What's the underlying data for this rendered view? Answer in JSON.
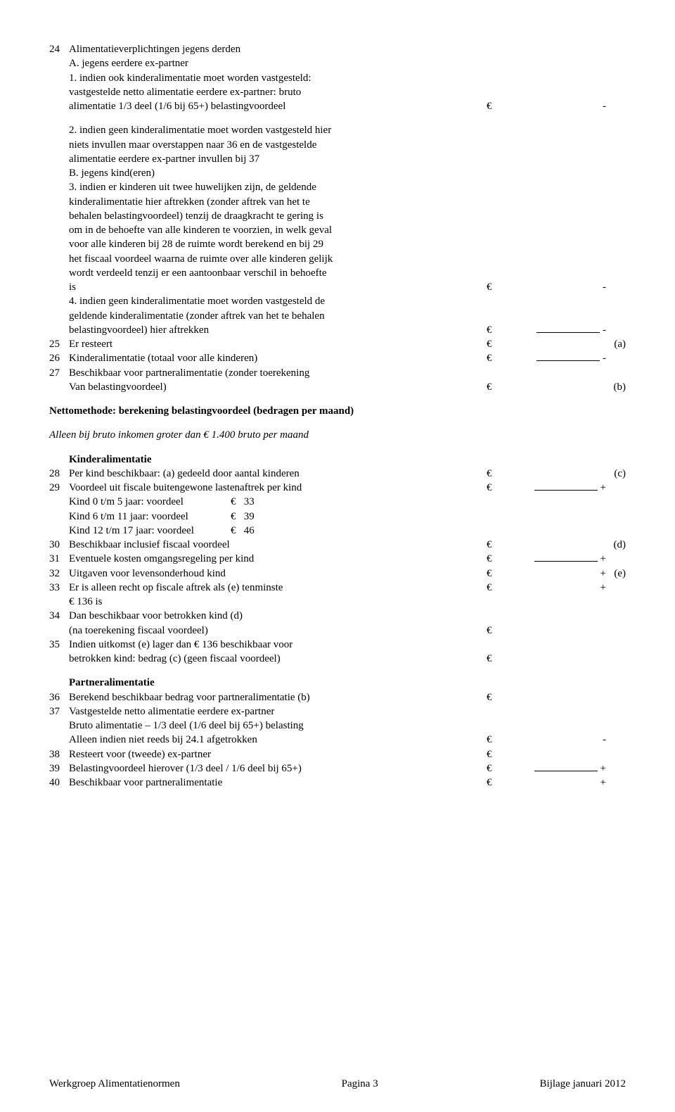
{
  "r24": {
    "num": "24",
    "title": "Alimentatieverplichtingen jegens derden"
  },
  "r24A": {
    "text": "A. jegens eerdere ex-partner"
  },
  "r24_1a": {
    "text": "1. indien ook kinderalimentatie moet worden vastgesteld:"
  },
  "r24_1b": {
    "text": "vastgestelde netto alimentatie eerdere ex-partner: bruto"
  },
  "r24_1c": {
    "text": "alimentatie 1/3 deel (1/6 bij 65+) belastingvoordeel",
    "eur": "€",
    "sign": "-"
  },
  "r24_2a": {
    "text": "2. indien geen kinderalimentatie moet worden vastgesteld hier"
  },
  "r24_2b": {
    "text": "niets invullen maar overstappen naar 36 en de vastgestelde"
  },
  "r24_2c": {
    "text": "alimentatie eerdere ex-partner invullen bij 37"
  },
  "r24B": {
    "text": "B. jegens kind(eren)"
  },
  "r24_3a": {
    "text": "3. indien er kinderen uit twee huwelijken zijn, de geldende"
  },
  "r24_3b": {
    "text": "kinderalimentatie hier aftrekken (zonder aftrek van het te"
  },
  "r24_3c": {
    "text": "behalen belastingvoordeel) tenzij de draagkracht te gering is"
  },
  "r24_3d": {
    "text": "om in de behoefte van alle kinderen te voorzien, in welk geval"
  },
  "r24_3e": {
    "text": "voor alle kinderen bij 28 de ruimte wordt berekend en bij 29"
  },
  "r24_3f": {
    "text": "het fiscaal voordeel waarna de ruimte over alle kinderen gelijk"
  },
  "r24_3g": {
    "text": "wordt verdeeld tenzij er een  aantoonbaar verschil in behoefte"
  },
  "r24_3h": {
    "text": "is",
    "eur": "€",
    "sign": "-"
  },
  "r24_4a": {
    "text": "4. indien geen kinderalimentatie moet worden vastgesteld de"
  },
  "r24_4b": {
    "text": "geldende kinderalimentatie (zonder aftrek van het te behalen"
  },
  "r24_4c": {
    "text": "belastingvoordeel) hier aftrekken",
    "eur": "€",
    "sign": "-",
    "blank": true
  },
  "r25": {
    "num": "25",
    "text": "Er resteert",
    "eur": "€",
    "label": "(a)"
  },
  "r26": {
    "num": "26",
    "text": "Kinderalimentatie (totaal voor alle kinderen)",
    "eur": "€",
    "sign": "-",
    "blank": true
  },
  "r27a": {
    "num": "27",
    "text": "Beschikbaar voor partneralimentatie (zonder toerekening"
  },
  "r27b": {
    "text": "Van belastingvoordeel)",
    "eur": "€",
    "label": "(b)"
  },
  "netto_title": "Nettomethode: berekening belastingvoordeel (bedragen per maand)",
  "alleen": "Alleen bij bruto inkomen groter dan € 1.400  bruto per maand",
  "kinder_title": "Kinderalimentatie",
  "r28": {
    "num": "28",
    "text": "Per kind beschikbaar: (a) gedeeld door aantal kinderen",
    "eur": "€",
    "label": "(c)"
  },
  "r29": {
    "num": "29",
    "text": "Voordeel uit fiscale buitengewone lastenaftrek per kind",
    "eur": "€",
    "sign": "+",
    "blank": true
  },
  "kind0": {
    "label": "Kind 0 t/m 5 jaar: voordeel",
    "eur": "€",
    "val": "33"
  },
  "kind6": {
    "label": "Kind 6 t/m 11 jaar: voordeel",
    "eur": "€",
    "val": "39"
  },
  "kind12": {
    "label": "Kind 12 t/m 17 jaar: voordeel",
    "eur": "€",
    "val": "46"
  },
  "r30": {
    "num": "30",
    "text": "Beschikbaar inclusief fiscaal voordeel",
    "eur": "€",
    "label": "(d)"
  },
  "r31": {
    "num": "31",
    "text": "Eventuele kosten omgangsregeling per kind",
    "eur": "€",
    "sign": "+",
    "blank": true
  },
  "r32": {
    "num": "32",
    "text": "Uitgaven voor levensonderhoud kind",
    "eur": "€",
    "sign": "+",
    "label": "(e)"
  },
  "r33a": {
    "num": "33",
    "text": "Er is alleen recht op fiscale aftrek als (e) tenminste",
    "eur": "€",
    "sign": "+"
  },
  "r33b": {
    "text": "€ 136 is"
  },
  "r34a": {
    "num": "34",
    "text": "Dan beschikbaar voor betrokken kind (d)"
  },
  "r34b": {
    "text": "(na toerekening fiscaal voordeel)",
    "eur": "€"
  },
  "r35a": {
    "num": "35",
    "text": "Indien uitkomst (e) lager dan € 136 beschikbaar voor"
  },
  "r35b": {
    "text": "betrokken kind: bedrag (c) (geen fiscaal voordeel)",
    "eur": "€"
  },
  "partner_title": "Partneralimentatie",
  "r36": {
    "num": "36",
    "text": "Berekend beschikbaar bedrag voor partneralimentatie (b)",
    "eur": "€"
  },
  "r37a": {
    "num": "37",
    "text": "Vastgestelde netto alimentatie eerdere ex-partner"
  },
  "r37b": {
    "text": "Bruto alimentatie – 1/3 deel (1/6 deel bij 65+) belasting"
  },
  "r37c": {
    "text": "Alleen indien niet reeds bij 24.1 afgetrokken",
    "eur": "€",
    "sign": "-"
  },
  "r38": {
    "num": "38",
    "text": "Resteert voor (tweede) ex-partner",
    "eur": "€"
  },
  "r39": {
    "num": "39",
    "text": "Belastingvoordeel hierover (1/3 deel / 1/6 deel bij 65+)",
    "eur": "€",
    "sign": "+",
    "blank": true
  },
  "r40": {
    "num": "40",
    "text": "Beschikbaar voor partneralimentatie",
    "eur": "€",
    "sign": "+"
  },
  "footer": {
    "left": "Werkgroep Alimentatienormen",
    "center": "Pagina 3",
    "right": "Bijlage januari 2012"
  }
}
